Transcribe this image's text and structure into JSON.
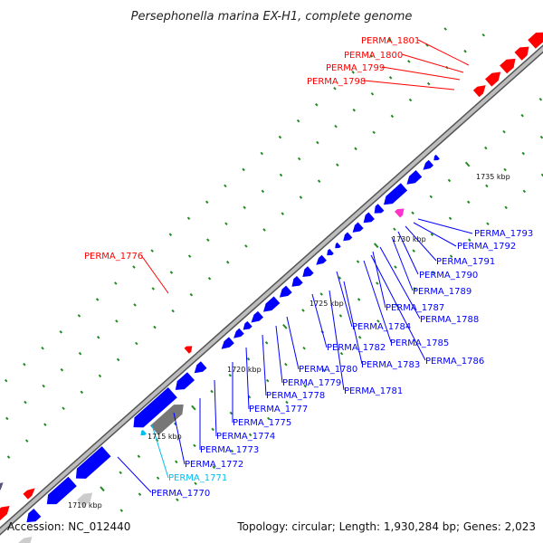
{
  "title": "Persephonella marina EX-H1, complete genome",
  "footer": {
    "accession": "Accession: NC_012440",
    "summary": "Topology: circular; Length: 1,930,284 bp; Genes: 2,023"
  },
  "colors": {
    "forward_strand_red": "#ff0000",
    "reverse_strand_blue": "#0000ff",
    "cyan_label": "#00bfef",
    "magenta_feature": "#ff33cc",
    "gray_feature": "#777777",
    "backbone": "#999999",
    "tick_green": "#228b22"
  },
  "ticks": [
    {
      "label": "1710 kbp"
    },
    {
      "label": "1715 kbp"
    },
    {
      "label": "1720 kbp"
    },
    {
      "label": "1725 kbp"
    },
    {
      "label": "1730 kbp"
    },
    {
      "label": "1735 kbp"
    }
  ],
  "genes": [
    {
      "name": "PERMA_1801",
      "color": "red"
    },
    {
      "name": "PERMA_1800",
      "color": "red"
    },
    {
      "name": "PERMA_1799",
      "color": "red"
    },
    {
      "name": "PERMA_1798",
      "color": "red"
    },
    {
      "name": "PERMA_1776",
      "color": "red"
    },
    {
      "name": "PERMA_1793",
      "color": "blue"
    },
    {
      "name": "PERMA_1792",
      "color": "blue"
    },
    {
      "name": "PERMA_1791",
      "color": "blue"
    },
    {
      "name": "PERMA_1790",
      "color": "blue"
    },
    {
      "name": "PERMA_1789",
      "color": "blue"
    },
    {
      "name": "PERMA_1787",
      "color": "blue"
    },
    {
      "name": "PERMA_1788",
      "color": "blue"
    },
    {
      "name": "PERMA_1784",
      "color": "blue"
    },
    {
      "name": "PERMA_1785",
      "color": "blue"
    },
    {
      "name": "PERMA_1786",
      "color": "blue"
    },
    {
      "name": "PERMA_1782",
      "color": "blue"
    },
    {
      "name": "PERMA_1783",
      "color": "blue"
    },
    {
      "name": "PERMA_1780",
      "color": "blue"
    },
    {
      "name": "PERMA_1781",
      "color": "blue"
    },
    {
      "name": "PERMA_1779",
      "color": "blue"
    },
    {
      "name": "PERMA_1778",
      "color": "blue"
    },
    {
      "name": "PERMA_1777",
      "color": "blue"
    },
    {
      "name": "PERMA_1775",
      "color": "blue"
    },
    {
      "name": "PERMA_1774",
      "color": "blue"
    },
    {
      "name": "PERMA_1773",
      "color": "blue"
    },
    {
      "name": "PERMA_1772",
      "color": "blue"
    },
    {
      "name": "PERMA_1771",
      "color": "cyan"
    },
    {
      "name": "PERMA_1770",
      "color": "blue"
    }
  ]
}
